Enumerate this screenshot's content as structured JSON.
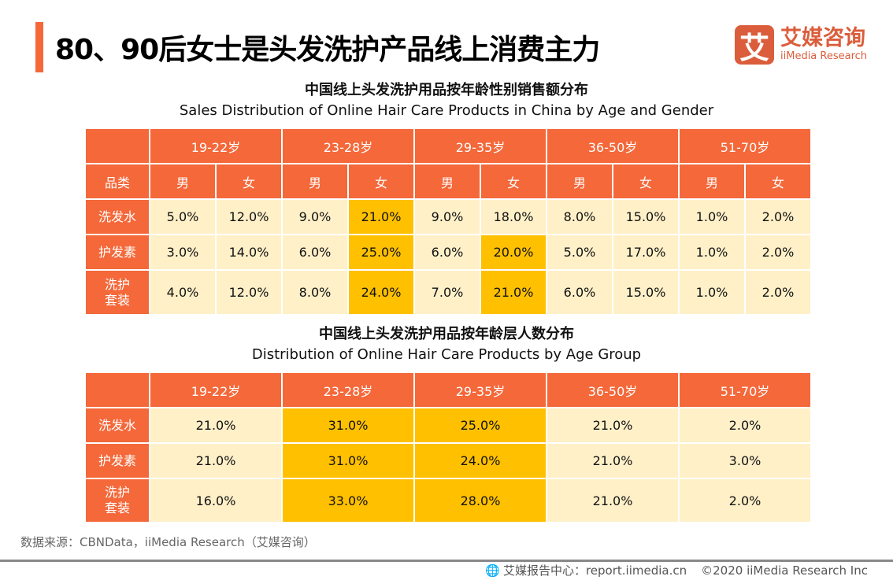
{
  "title": "80、90后女士是头发洗护产品线上消费主力",
  "logo": {
    "mark": "艾",
    "cn": "艾媒咨询",
    "en": "iiMedia Research"
  },
  "colors": {
    "accent": "#F4683A",
    "cell": "#FFF0C8",
    "highlight": "#FFC000"
  },
  "table1": {
    "title_cn": "中国线上头发洗护用品按年龄性别销售额分布",
    "title_en": "Sales Distribution of Online Hair Care Products in China by Age and Gender",
    "age_groups": [
      "19-22岁",
      "23-28岁",
      "29-35岁",
      "36-50岁",
      "51-70岁"
    ],
    "category_header": "品类",
    "genders": [
      "男",
      "女",
      "男",
      "女",
      "男",
      "女",
      "男",
      "女",
      "男",
      "女"
    ],
    "rows": [
      {
        "label": "洗发水",
        "values": [
          "5.0%",
          "12.0%",
          "9.0%",
          "21.0%",
          "9.0%",
          "18.0%",
          "8.0%",
          "15.0%",
          "1.0%",
          "2.0%"
        ],
        "highlight": [
          3
        ]
      },
      {
        "label": "护发素",
        "values": [
          "3.0%",
          "14.0%",
          "6.0%",
          "25.0%",
          "6.0%",
          "20.0%",
          "5.0%",
          "17.0%",
          "1.0%",
          "2.0%"
        ],
        "highlight": [
          3,
          5
        ]
      },
      {
        "label": "洗护\n套装",
        "values": [
          "4.0%",
          "12.0%",
          "8.0%",
          "24.0%",
          "7.0%",
          "21.0%",
          "6.0%",
          "15.0%",
          "1.0%",
          "2.0%"
        ],
        "highlight": [
          3,
          5
        ]
      }
    ]
  },
  "table2": {
    "title_cn": "中国线上头发洗护用品按年龄层人数分布",
    "title_en": "Distribution of Online Hair Care Products by Age Group",
    "age_groups": [
      "19-22岁",
      "23-28岁",
      "29-35岁",
      "36-50岁",
      "51-70岁"
    ],
    "rows": [
      {
        "label": "洗发水",
        "values": [
          "21.0%",
          "31.0%",
          "25.0%",
          "21.0%",
          "2.0%"
        ],
        "highlight": [
          1,
          2
        ]
      },
      {
        "label": "护发素",
        "values": [
          "21.0%",
          "31.0%",
          "24.0%",
          "21.0%",
          "3.0%"
        ],
        "highlight": [
          1,
          2
        ]
      },
      {
        "label": "洗护\n套装",
        "values": [
          "16.0%",
          "33.0%",
          "28.0%",
          "21.0%",
          "2.0%"
        ],
        "highlight": [
          1,
          2
        ]
      }
    ]
  },
  "source": "数据来源：CBNData，iiMedia Research（艾媒咨询）",
  "footer": {
    "report": "艾媒报告中心：report.iimedia.cn",
    "copyright": "©2020  iiMedia Research  Inc"
  }
}
